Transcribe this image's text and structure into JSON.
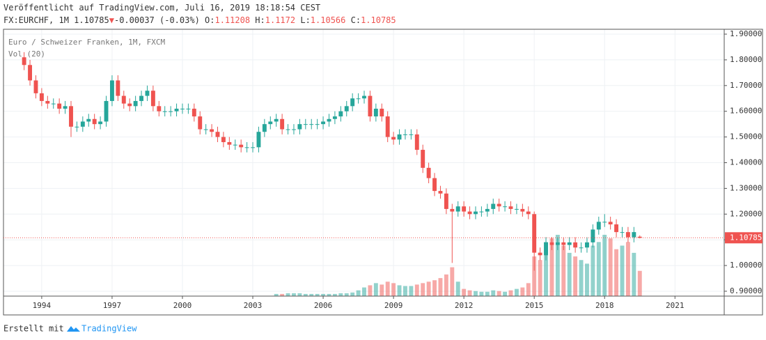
{
  "chart_data": {
    "type": "candlestick",
    "published": "Veröffentlicht auf TradingView.com, Juli 16, 2019 18:18:54 CEST",
    "symbol": "FX:EURCHF, 1M",
    "change": "-0.00037 (-0.03%)",
    "change_arrow": "▼",
    "ohlc_labels": [
      "O:",
      "H:",
      "L:",
      "C:"
    ],
    "title": "Euro / Schweizer Franken, 1M, FXCM",
    "volume_label": "Vol (20)",
    "footer": "Erstellt mit",
    "brand": "TradingView",
    "up_color": "#26a69a",
    "down_color": "#ef5350",
    "grid": true,
    "xlim": [
      1992.37,
      2023.1
    ],
    "xticks": [
      1994,
      1997,
      2000,
      2003,
      2006,
      2009,
      2012,
      2015,
      2018,
      2021
    ],
    "ylim": [
      0.881,
      1.919
    ],
    "yticks": [
      {
        "value": 0.9,
        "label": "0.90000"
      },
      {
        "value": 1.0,
        "label": "1.00000"
      },
      {
        "value": 1.1,
        "label": "1.10000"
      },
      {
        "value": 1.2,
        "label": "1.20000"
      },
      {
        "value": 1.3,
        "label": "1.30000"
      },
      {
        "value": 1.4,
        "label": "1.40000"
      },
      {
        "value": 1.5,
        "label": "1.50000"
      },
      {
        "value": 1.6,
        "label": "1.60000"
      },
      {
        "value": 1.7,
        "label": "1.70000"
      },
      {
        "value": 1.8,
        "label": "1.80000"
      },
      {
        "value": 1.9,
        "label": "1.90000"
      }
    ],
    "x": [
      1993.25,
      1993.5,
      1993.75,
      1994,
      1994.25,
      1994.5,
      1994.75,
      1995,
      1995.25,
      1995.5,
      1995.75,
      1996,
      1996.25,
      1996.5,
      1996.75,
      1997,
      1997.25,
      1997.5,
      1997.75,
      1998,
      1998.25,
      1998.5,
      1998.75,
      1999,
      1999.25,
      1999.5,
      1999.75,
      2000,
      2000.25,
      2000.5,
      2000.75,
      2001,
      2001.25,
      2001.5,
      2001.75,
      2002,
      2002.25,
      2002.5,
      2002.75,
      2003,
      2003.25,
      2003.5,
      2003.75,
      2004,
      2004.25,
      2004.5,
      2004.75,
      2005,
      2005.25,
      2005.5,
      2005.75,
      2006,
      2006.25,
      2006.5,
      2006.75,
      2007,
      2007.25,
      2007.5,
      2007.75,
      2008,
      2008.25,
      2008.5,
      2008.75,
      2009,
      2009.25,
      2009.5,
      2009.75,
      2010,
      2010.25,
      2010.5,
      2010.75,
      2011,
      2011.25,
      2011.5,
      2011.75,
      2012,
      2012.25,
      2012.5,
      2012.75,
      2013,
      2013.25,
      2013.5,
      2013.75,
      2014,
      2014.25,
      2014.5,
      2014.75,
      2015,
      2015.25,
      2015.5,
      2015.75,
      2016,
      2016.25,
      2016.5,
      2016.75,
      2017,
      2017.25,
      2017.5,
      2017.75,
      2018,
      2018.25,
      2018.5,
      2018.75,
      2019,
      2019.25,
      2019.5
    ],
    "open": [
      1.81,
      1.78,
      1.72,
      1.67,
      1.64,
      1.63,
      1.63,
      1.61,
      1.62,
      1.54,
      1.54,
      1.56,
      1.57,
      1.55,
      1.56,
      1.64,
      1.72,
      1.66,
      1.63,
      1.62,
      1.64,
      1.66,
      1.68,
      1.62,
      1.6,
      1.6,
      1.6,
      1.61,
      1.61,
      1.61,
      1.58,
      1.53,
      1.53,
      1.52,
      1.5,
      1.48,
      1.47,
      1.47,
      1.46,
      1.46,
      1.46,
      1.52,
      1.55,
      1.56,
      1.57,
      1.53,
      1.53,
      1.53,
      1.55,
      1.55,
      1.55,
      1.55,
      1.56,
      1.57,
      1.58,
      1.6,
      1.62,
      1.65,
      1.65,
      1.66,
      1.58,
      1.61,
      1.58,
      1.5,
      1.49,
      1.51,
      1.51,
      1.51,
      1.45,
      1.38,
      1.34,
      1.29,
      1.28,
      1.22,
      1.21,
      1.23,
      1.21,
      1.2,
      1.21,
      1.21,
      1.22,
      1.24,
      1.23,
      1.23,
      1.22,
      1.22,
      1.21,
      1.2,
      1.05,
      1.04,
      1.09,
      1.08,
      1.09,
      1.08,
      1.09,
      1.07,
      1.07,
      1.09,
      1.14,
      1.17,
      1.17,
      1.16,
      1.13,
      1.13,
      1.11,
      1.11208
    ],
    "high": [
      1.83,
      1.8,
      1.74,
      1.69,
      1.66,
      1.65,
      1.65,
      1.64,
      1.64,
      1.56,
      1.58,
      1.59,
      1.59,
      1.58,
      1.66,
      1.74,
      1.74,
      1.68,
      1.65,
      1.66,
      1.68,
      1.7,
      1.7,
      1.64,
      1.62,
      1.62,
      1.63,
      1.63,
      1.63,
      1.63,
      1.6,
      1.55,
      1.55,
      1.54,
      1.52,
      1.5,
      1.49,
      1.49,
      1.48,
      1.48,
      1.54,
      1.57,
      1.58,
      1.59,
      1.59,
      1.55,
      1.55,
      1.57,
      1.57,
      1.57,
      1.57,
      1.58,
      1.59,
      1.6,
      1.62,
      1.64,
      1.67,
      1.67,
      1.68,
      1.68,
      1.63,
      1.63,
      1.6,
      1.52,
      1.53,
      1.53,
      1.53,
      1.53,
      1.47,
      1.4,
      1.36,
      1.31,
      1.3,
      1.24,
      1.25,
      1.25,
      1.23,
      1.23,
      1.23,
      1.24,
      1.26,
      1.26,
      1.25,
      1.25,
      1.24,
      1.24,
      1.23,
      1.21,
      1.07,
      1.11,
      1.11,
      1.11,
      1.11,
      1.11,
      1.11,
      1.09,
      1.11,
      1.16,
      1.19,
      1.2,
      1.19,
      1.18,
      1.15,
      1.15,
      1.15,
      1.1172
    ],
    "low": [
      1.76,
      1.7,
      1.65,
      1.62,
      1.61,
      1.61,
      1.59,
      1.59,
      1.5,
      1.52,
      1.52,
      1.54,
      1.53,
      1.53,
      1.54,
      1.62,
      1.64,
      1.61,
      1.6,
      1.6,
      1.62,
      1.64,
      1.6,
      1.58,
      1.58,
      1.58,
      1.58,
      1.59,
      1.59,
      1.56,
      1.51,
      1.51,
      1.5,
      1.48,
      1.46,
      1.45,
      1.45,
      1.44,
      1.44,
      1.44,
      1.44,
      1.5,
      1.53,
      1.54,
      1.51,
      1.51,
      1.51,
      1.51,
      1.53,
      1.53,
      1.53,
      1.53,
      1.54,
      1.55,
      1.56,
      1.58,
      1.6,
      1.63,
      1.63,
      1.56,
      1.56,
      1.56,
      1.48,
      1.47,
      1.47,
      1.49,
      1.49,
      1.43,
      1.36,
      1.32,
      1.27,
      1.26,
      1.2,
      1.01,
      1.19,
      1.19,
      1.18,
      1.18,
      1.19,
      1.19,
      1.2,
      1.21,
      1.21,
      1.2,
      1.2,
      1.19,
      1.18,
      0.98,
      1.02,
      1.02,
      1.06,
      1.06,
      1.06,
      1.06,
      1.05,
      1.05,
      1.05,
      1.07,
      1.12,
      1.15,
      1.14,
      1.11,
      1.11,
      1.09,
      1.09,
      1.10566
    ],
    "close": [
      1.78,
      1.72,
      1.67,
      1.64,
      1.63,
      1.63,
      1.61,
      1.62,
      1.54,
      1.54,
      1.56,
      1.57,
      1.55,
      1.56,
      1.64,
      1.72,
      1.66,
      1.63,
      1.62,
      1.64,
      1.66,
      1.68,
      1.62,
      1.6,
      1.6,
      1.6,
      1.61,
      1.61,
      1.61,
      1.58,
      1.53,
      1.53,
      1.52,
      1.5,
      1.48,
      1.47,
      1.47,
      1.46,
      1.46,
      1.46,
      1.52,
      1.55,
      1.56,
      1.57,
      1.53,
      1.53,
      1.53,
      1.55,
      1.55,
      1.55,
      1.55,
      1.56,
      1.57,
      1.58,
      1.6,
      1.62,
      1.65,
      1.65,
      1.66,
      1.58,
      1.61,
      1.58,
      1.5,
      1.49,
      1.51,
      1.51,
      1.51,
      1.45,
      1.38,
      1.34,
      1.29,
      1.28,
      1.22,
      1.21,
      1.23,
      1.21,
      1.2,
      1.21,
      1.21,
      1.22,
      1.24,
      1.23,
      1.23,
      1.22,
      1.22,
      1.21,
      1.2,
      1.05,
      1.04,
      1.09,
      1.08,
      1.09,
      1.08,
      1.09,
      1.07,
      1.07,
      1.09,
      1.14,
      1.17,
      1.17,
      1.16,
      1.13,
      1.13,
      1.11,
      1.13,
      1.10785
    ],
    "volume": [
      null,
      null,
      null,
      null,
      null,
      null,
      null,
      null,
      null,
      null,
      null,
      null,
      null,
      null,
      null,
      null,
      null,
      null,
      null,
      null,
      null,
      null,
      null,
      null,
      null,
      null,
      null,
      null,
      null,
      null,
      null,
      null,
      null,
      null,
      null,
      null,
      null,
      null,
      null,
      null,
      null,
      null,
      null,
      3,
      3,
      4,
      4,
      4,
      3,
      3,
      3,
      3,
      3,
      3,
      4,
      4,
      5,
      8,
      12,
      15,
      18,
      16,
      20,
      18,
      15,
      14,
      14,
      16,
      18,
      20,
      22,
      25,
      30,
      40,
      20,
      10,
      8,
      7,
      6,
      6,
      8,
      7,
      6,
      8,
      10,
      12,
      18,
      55,
      50,
      75,
      80,
      85,
      70,
      60,
      55,
      50,
      45,
      70,
      75,
      85,
      80,
      65,
      70,
      75,
      60,
      35
    ]
  }
}
